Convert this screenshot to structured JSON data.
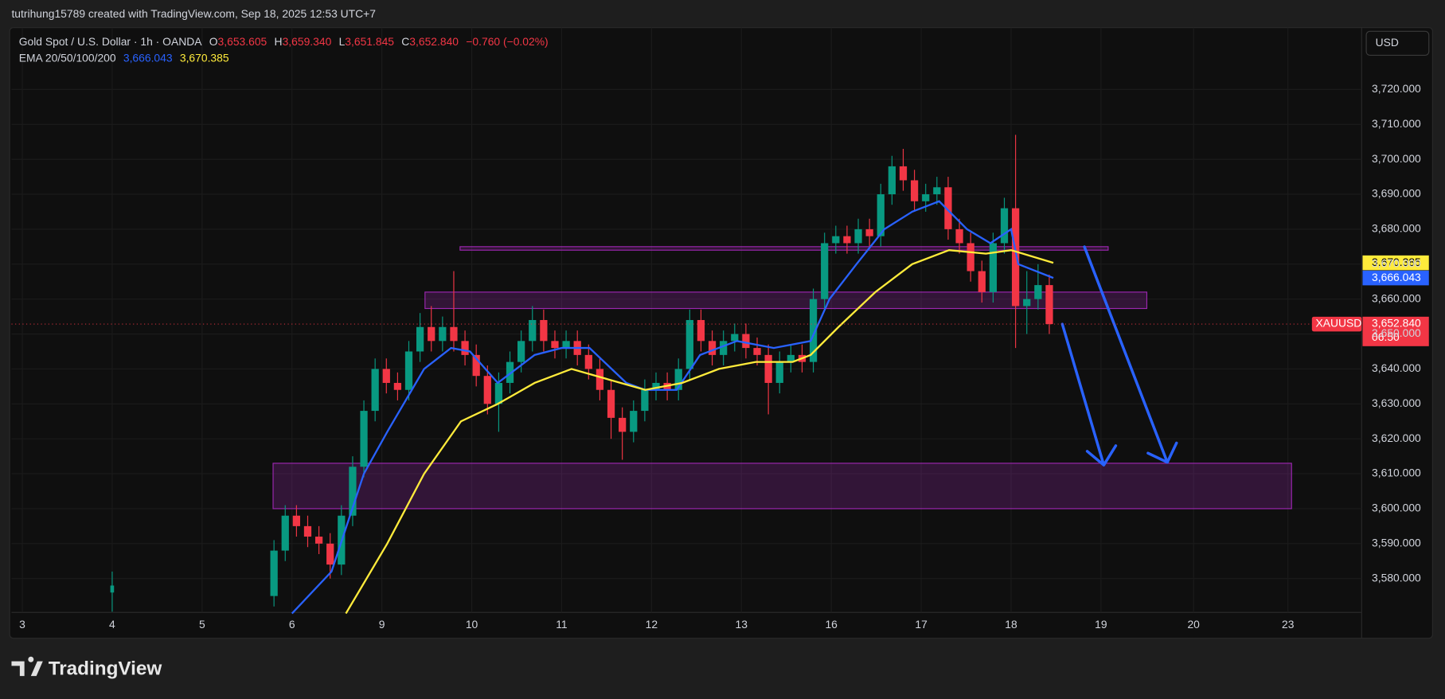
{
  "header": {
    "author": "tutrihung15789 created with TradingView.com, Sep 18, 2025 12:53 UTC+7"
  },
  "legend": {
    "symbol": "Gold Spot / U.S. Dollar · 1h · OANDA",
    "ohlc": [
      {
        "k": "O",
        "v": "3,653.605"
      },
      {
        "k": "H",
        "v": "3,659.340"
      },
      {
        "k": "L",
        "v": "3,651.845"
      },
      {
        "k": "C",
        "v": "3,652.840"
      }
    ],
    "change": "−0.760 (−0.02%)",
    "ema_label": "EMA 20/50/100/200",
    "ema_values": [
      "3,666.043",
      "3,670.385"
    ]
  },
  "currency": "USD",
  "ticker": "XAUUSD",
  "last_price": "3,652.840",
  "countdown": "06:50",
  "brand": "TradingView",
  "chart_data": {
    "type": "candlestick",
    "up_color": "#089981",
    "down_color": "#f23645",
    "xlim": [
      -0.12,
      14.9
    ],
    "ylim": [
      3570.3,
      3737.7
    ],
    "xticks": [
      {
        "value": 0,
        "label": "3"
      },
      {
        "value": 1,
        "label": "4"
      },
      {
        "value": 2,
        "label": "5"
      },
      {
        "value": 3,
        "label": "6"
      },
      {
        "value": 4,
        "label": "9"
      },
      {
        "value": 5,
        "label": "10"
      },
      {
        "value": 6,
        "label": "11"
      },
      {
        "value": 7,
        "label": "12"
      },
      {
        "value": 8,
        "label": "13"
      },
      {
        "value": 9,
        "label": "16"
      },
      {
        "value": 10,
        "label": "17"
      },
      {
        "value": 11,
        "label": "18"
      },
      {
        "value": 12,
        "label": "19"
      },
      {
        "value": 13.03,
        "label": "20"
      },
      {
        "value": 14.08,
        "label": "23"
      }
    ],
    "yticks": [
      {
        "value": 3580,
        "label": "3,580.000"
      },
      {
        "value": 3590,
        "label": "3,590.000"
      },
      {
        "value": 3600,
        "label": "3,600.000"
      },
      {
        "value": 3610,
        "label": "3,610.000"
      },
      {
        "value": 3620,
        "label": "3,620.000"
      },
      {
        "value": 3630,
        "label": "3,630.000"
      },
      {
        "value": 3640,
        "label": "3,640.000"
      },
      {
        "value": 3650,
        "label": "3,650.000"
      },
      {
        "value": 3660,
        "label": "3,660.000"
      },
      {
        "value": 3670,
        "label": "3,670.000"
      },
      {
        "value": 3680,
        "label": "3,680.000"
      },
      {
        "value": 3690,
        "label": "3,690.000"
      },
      {
        "value": 3700,
        "label": "3,700.000"
      },
      {
        "value": 3710,
        "label": "3,710.000"
      },
      {
        "value": 3720,
        "label": "3,720.000"
      }
    ],
    "grid": true,
    "x": [
      1.0,
      2.8,
      2.925,
      3.05,
      3.175,
      3.3,
      3.425,
      3.55,
      3.675,
      3.8,
      3.925,
      4.05,
      4.175,
      4.3,
      4.425,
      4.55,
      4.675,
      4.8,
      4.925,
      5.05,
      5.175,
      5.3,
      5.425,
      5.55,
      5.675,
      5.8,
      5.925,
      6.05,
      6.175,
      6.3,
      6.425,
      6.55,
      6.675,
      6.8,
      6.925,
      7.05,
      7.175,
      7.3,
      7.425,
      7.55,
      7.675,
      7.8,
      7.925,
      8.05,
      8.175,
      8.3,
      8.425,
      8.55,
      8.675,
      8.8,
      8.925,
      9.05,
      9.175,
      9.3,
      9.425,
      9.55,
      9.675,
      9.8,
      9.925,
      10.05,
      10.175,
      10.3,
      10.425,
      10.55,
      10.675,
      10.8,
      10.925,
      11.05,
      11.175,
      11.3,
      11.425
    ],
    "open": [
      3576,
      3575,
      3588,
      3598,
      3595,
      3592,
      3590,
      3584,
      3598,
      3612,
      3628,
      3640,
      3636,
      3634,
      3645,
      3652,
      3648,
      3652,
      3648,
      3644,
      3638,
      3630,
      3636,
      3642,
      3648,
      3654,
      3648,
      3646,
      3648,
      3644,
      3640,
      3634,
      3626,
      3622,
      3628,
      3634,
      3636,
      3634,
      3640,
      3654,
      3648,
      3644,
      3648,
      3650,
      3646,
      3644,
      3636,
      3642,
      3644,
      3642,
      3660,
      3676,
      3678,
      3676,
      3680,
      3678,
      3690,
      3698,
      3694,
      3688,
      3690,
      3692,
      3680,
      3676,
      3668,
      3662,
      3676,
      3686,
      3658,
      3660,
      3664
    ],
    "high": [
      3582,
      3591,
      3601,
      3601,
      3598,
      3595,
      3593,
      3601,
      3615,
      3631,
      3643,
      3643,
      3639,
      3648,
      3656,
      3658,
      3655,
      3668,
      3651,
      3647,
      3641,
      3639,
      3645,
      3651,
      3658,
      3657,
      3651,
      3651,
      3651,
      3647,
      3643,
      3637,
      3629,
      3631,
      3637,
      3639,
      3639,
      3643,
      3657,
      3657,
      3651,
      3651,
      3653,
      3653,
      3649,
      3647,
      3645,
      3647,
      3647,
      3663,
      3679,
      3681,
      3681,
      3683,
      3683,
      3693,
      3701,
      3703,
      3697,
      3693,
      3695,
      3695,
      3683,
      3679,
      3671,
      3679,
      3689,
      3707,
      3668,
      3670,
      3667
    ],
    "low": [
      3570.5,
      3572,
      3585,
      3592,
      3589,
      3587,
      3580,
      3581,
      3595,
      3609,
      3625,
      3633,
      3631,
      3631,
      3642,
      3645,
      3645,
      3645,
      3641,
      3635,
      3627,
      3622,
      3633,
      3639,
      3645,
      3645,
      3643,
      3643,
      3641,
      3637,
      3631,
      3620,
      3614,
      3619,
      3625,
      3631,
      3631,
      3631,
      3637,
      3645,
      3641,
      3641,
      3645,
      3643,
      3641,
      3627,
      3633,
      3639,
      3639,
      3639,
      3657,
      3673,
      3673,
      3673,
      3675,
      3675,
      3687,
      3691,
      3685,
      3685,
      3687,
      3677,
      3673,
      3665,
      3659,
      3659,
      3673,
      3646,
      3650,
      3657,
      3650
    ],
    "close": [
      3578,
      3588,
      3598,
      3595,
      3592,
      3590,
      3584,
      3598,
      3612,
      3628,
      3640,
      3636,
      3634,
      3645,
      3652,
      3648,
      3652,
      3648,
      3644,
      3638,
      3630,
      3636,
      3642,
      3648,
      3654,
      3648,
      3646,
      3648,
      3644,
      3640,
      3634,
      3626,
      3622,
      3628,
      3634,
      3636,
      3634,
      3640,
      3654,
      3648,
      3644,
      3648,
      3650,
      3646,
      3644,
      3636,
      3642,
      3644,
      3642,
      3660,
      3676,
      3678,
      3676,
      3680,
      3678,
      3690,
      3698,
      3694,
      3688,
      3690,
      3692,
      3680,
      3676,
      3668,
      3662,
      3676,
      3686,
      3658,
      3660,
      3664,
      3652.84
    ],
    "series": [
      {
        "color": "#2962ff",
        "x": [
          3.0,
          3.44,
          3.8,
          4.06,
          4.47,
          4.77,
          4.98,
          5.29,
          5.7,
          6.0,
          6.31,
          6.72,
          6.93,
          7.28,
          7.54,
          7.95,
          8.36,
          8.77,
          8.98,
          9.28,
          9.59,
          9.9,
          10.2,
          10.51,
          10.77,
          11.0,
          11.08,
          11.47
        ],
        "values": [
          3570,
          3582,
          3610,
          3622,
          3640,
          3646,
          3645,
          3636,
          3644,
          3646,
          3646,
          3636,
          3634,
          3634,
          3644,
          3648,
          3646,
          3648,
          3660,
          3670,
          3680,
          3685,
          3688,
          3680,
          3676,
          3680,
          3670,
          3666.043
        ]
      },
      {
        "color": "#ffeb3b",
        "x": [
          3.6,
          4.06,
          4.47,
          4.88,
          5.29,
          5.7,
          6.11,
          6.52,
          6.93,
          7.34,
          7.75,
          8.16,
          8.57,
          8.77,
          9.08,
          9.49,
          9.9,
          10.31,
          10.72,
          11.0,
          11.47
        ],
        "values": [
          3570,
          3590,
          3610,
          3625,
          3630,
          3636,
          3640,
          3637,
          3634,
          3636,
          3640,
          3642,
          3642,
          3644,
          3652,
          3662,
          3670,
          3674,
          3673,
          3674,
          3670.385
        ]
      }
    ],
    "zones": [
      {
        "x": [
          4.87,
          12.08
        ],
        "y": [
          3674,
          3675
        ]
      },
      {
        "x": [
          4.48,
          12.51
        ],
        "y": [
          3657.3,
          3662
        ]
      },
      {
        "x": [
          2.79,
          14.12
        ],
        "y": [
          3600,
          3613
        ]
      }
    ]
  }
}
